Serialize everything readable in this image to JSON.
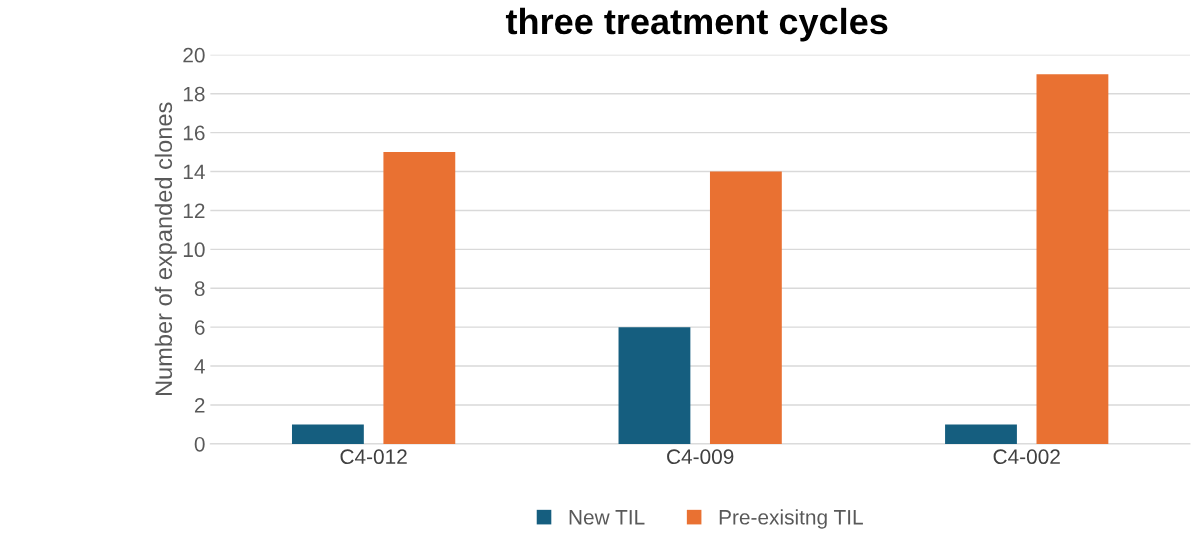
{
  "chart_data": {
    "type": "bar",
    "title": "three treatment cycles",
    "ylabel": "Number of expanded clones",
    "categories": [
      "C4-012",
      "C4-009",
      "C4-002"
    ],
    "series": [
      {
        "name": "New TIL",
        "color": "#155e7f",
        "values": [
          1,
          6,
          1
        ]
      },
      {
        "name": "Pre-exisitng TIL",
        "color": "#e97132",
        "values": [
          15,
          14,
          19
        ]
      }
    ],
    "ylim": [
      0,
      20
    ],
    "yticks": [
      0,
      2,
      4,
      6,
      8,
      10,
      12,
      14,
      16,
      18,
      20
    ],
    "grid": "y",
    "legend": "bottom"
  }
}
